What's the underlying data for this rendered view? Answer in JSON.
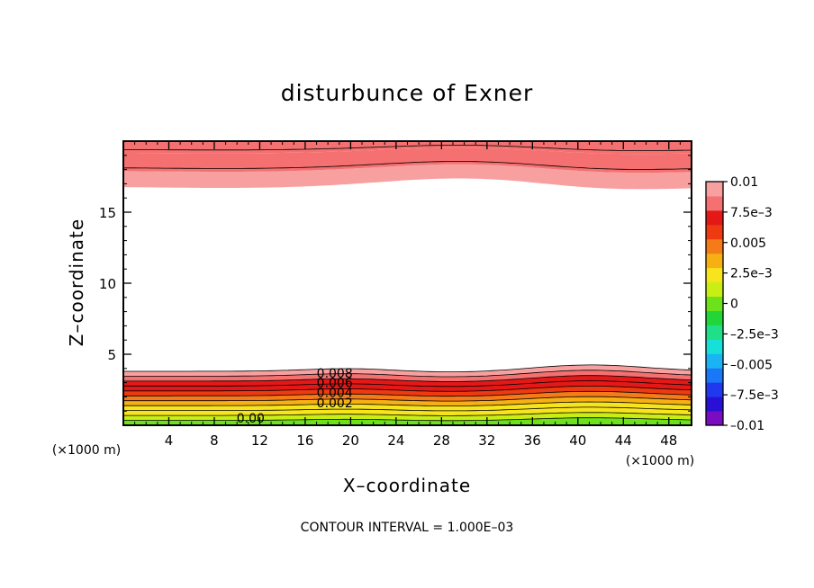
{
  "chart_data": {
    "type": "contour",
    "title": "disturbunce of Exner",
    "xlabel": "X–coordinate",
    "ylabel": "Z–coordinate",
    "x_unit": "(×1000 m)",
    "x_unit_right": "(×1000 m)",
    "xlim": [
      0,
      50
    ],
    "ylim": [
      0,
      20
    ],
    "x_ticks": [
      4,
      8,
      12,
      16,
      20,
      24,
      28,
      32,
      36,
      40,
      44,
      48
    ],
    "y_ticks": [
      5,
      10,
      15
    ],
    "contour_interval_text": "CONTOUR INTERVAL = 1.000E–03",
    "contour_labels": [
      "0.008",
      "0.006",
      "0.004",
      "0.002",
      "0.00"
    ],
    "colorbar": {
      "min": -0.01,
      "max": 0.01,
      "labels": [
        "0.01",
        "7.5e–3",
        "0.005",
        "2.5e–3",
        "0",
        "–2.5e–3",
        "–0.005",
        "–7.5e–3",
        "–0.01"
      ],
      "colors": [
        "#7a0dbf",
        "#2a10d6",
        "#2038ee",
        "#1a78f8",
        "#1ab4f4",
        "#17e0d8",
        "#1fdf88",
        "#22d63a",
        "#6ce21a",
        "#c9ee16",
        "#f6e41c",
        "#f6b014",
        "#f57a18",
        "#ee3a10",
        "#e51818",
        "#f57070",
        "#f8a0a0"
      ]
    },
    "bottom_layer": {
      "z_top": 3.8,
      "bump_x": [
        20,
        41
      ],
      "bump_z": [
        0.2,
        0.45
      ]
    },
    "top_layer": {
      "z_bottom": 16.8,
      "wave_x": [
        10,
        30,
        43
      ],
      "wave_z": [
        -0.1,
        0.6,
        -0.25
      ]
    }
  }
}
